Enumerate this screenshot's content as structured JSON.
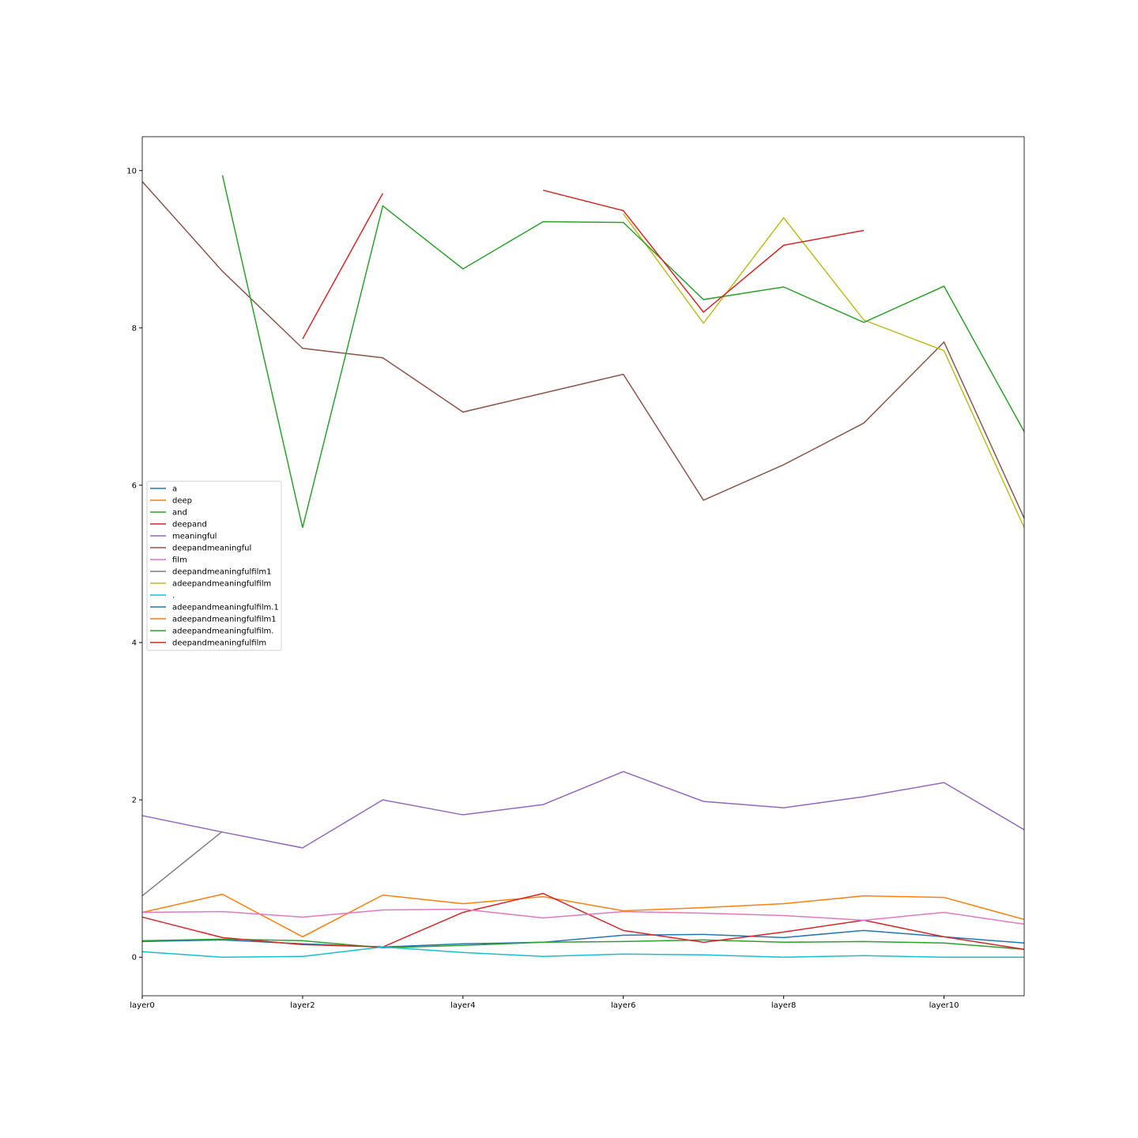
{
  "chart_data": {
    "type": "line",
    "categories": [
      "layer0",
      null,
      "layer2",
      null,
      "layer4",
      null,
      "layer6",
      null,
      "layer8",
      null,
      "layer10",
      null
    ],
    "ylim": [
      -0.49,
      10.43
    ],
    "yticks": [
      0,
      2,
      4,
      6,
      8,
      10
    ],
    "grid": false,
    "legend": "center left",
    "series": [
      {
        "name": "a",
        "color": "#1f77b4",
        "values": [
          0.2,
          0.22,
          0.17,
          0.13,
          0.17,
          0.19,
          0.28,
          0.29,
          0.25,
          0.34,
          0.26,
          0.18
        ]
      },
      {
        "name": "deep",
        "color": "#ff7f0e",
        "values": [
          0.57,
          0.8,
          0.26,
          0.79,
          0.68,
          0.77,
          0.59,
          0.63,
          0.68,
          0.78,
          0.76,
          0.48
        ]
      },
      {
        "name": "and",
        "color": "#2ca02c",
        "values": [
          0.21,
          0.23,
          0.21,
          0.12,
          0.15,
          0.19,
          0.2,
          0.22,
          0.19,
          0.2,
          0.18,
          0.1
        ]
      },
      {
        "name": "deepand",
        "color": "#d62728",
        "values": [
          0.51,
          0.25,
          0.16,
          0.13,
          0.57,
          0.81,
          0.34,
          0.19,
          0.32,
          0.47,
          0.26,
          0.1
        ]
      },
      {
        "name": "meaningful",
        "color": "#9467bd",
        "values": [
          1.8,
          1.59,
          1.39,
          2.0,
          1.81,
          1.94,
          2.36,
          1.98,
          1.9,
          2.04,
          2.22,
          1.62
        ]
      },
      {
        "name": "deepandmeaningful",
        "color": "#8c564b",
        "values": [
          9.86,
          8.72,
          7.74,
          7.62,
          6.93,
          7.17,
          7.41,
          5.81,
          6.26,
          6.79,
          7.82,
          5.58
        ]
      },
      {
        "name": "film",
        "color": "#e377c2",
        "values": [
          0.57,
          0.58,
          0.51,
          0.6,
          0.61,
          0.5,
          0.58,
          0.56,
          0.53,
          0.47,
          0.57,
          0.42
        ]
      },
      {
        "name": "deepandmeaningfulfilm1",
        "color": "#7f7f7f",
        "values": [
          0.78,
          1.6,
          null,
          null,
          null,
          null,
          null,
          null,
          null,
          null,
          null,
          null
        ]
      },
      {
        "name": "adeepandmeaningfulfilm",
        "color": "#bcbd22",
        "values": [
          null,
          null,
          null,
          null,
          null,
          null,
          9.45,
          8.06,
          9.4,
          8.1,
          7.71,
          5.46
        ]
      },
      {
        "name": ".",
        "color": "#17becf",
        "values": [
          0.07,
          0.0,
          0.01,
          0.13,
          0.06,
          0.01,
          0.04,
          0.03,
          0.0,
          0.02,
          0.0,
          0.0
        ]
      },
      {
        "name": "adeepandmeaningfulfilm.1",
        "color": "#1f77b4",
        "values": [
          null,
          null,
          null,
          null,
          null,
          null,
          null,
          null,
          null,
          null,
          null,
          null
        ]
      },
      {
        "name": "adeepandmeaningfulfilm1",
        "color": "#ff7f0e",
        "values": [
          null,
          null,
          null,
          null,
          null,
          null,
          null,
          null,
          null,
          null,
          null,
          null
        ]
      },
      {
        "name": "adeepandmeaningfulfilm.",
        "color": "#2ca02c",
        "values": [
          null,
          9.94,
          5.46,
          9.55,
          8.75,
          9.35,
          9.34,
          8.36,
          8.52,
          8.07,
          8.53,
          6.68
        ]
      },
      {
        "name": "deepandmeaningfulfilm",
        "color": "#d62728",
        "values": [
          null,
          null,
          7.86,
          9.71,
          null,
          9.75,
          9.49,
          8.2,
          9.05,
          9.24,
          null,
          null
        ]
      }
    ]
  }
}
